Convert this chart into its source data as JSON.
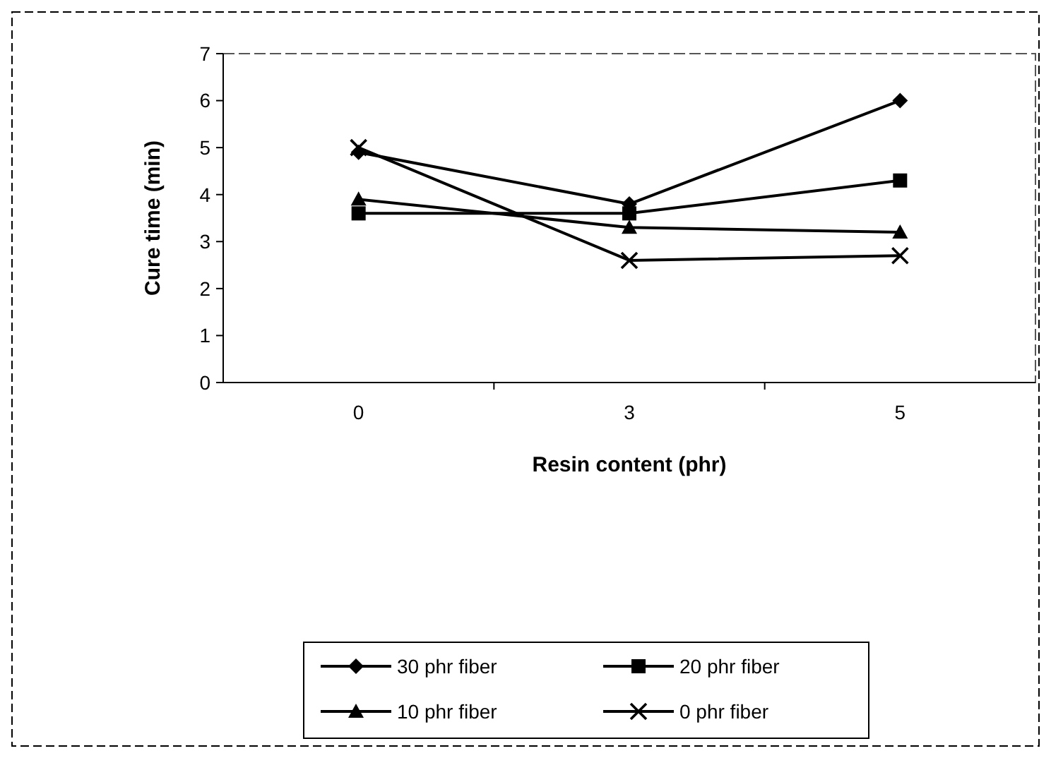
{
  "chart_data": {
    "type": "line",
    "xlabel": "Resin content (phr)",
    "ylabel": "Cure time (min)",
    "categories": [
      "0",
      "3",
      "5"
    ],
    "ylim": [
      0,
      7
    ],
    "yticks": [
      0,
      1,
      2,
      3,
      4,
      5,
      6,
      7
    ],
    "grid": false,
    "legend": "bottom",
    "line_style": "solid",
    "series": [
      {
        "name": "30 phr fiber",
        "color": "#000000",
        "marker": "diamond",
        "values": [
          4.9,
          3.8,
          6.0
        ]
      },
      {
        "name": "20 phr fiber",
        "color": "#000000",
        "marker": "square",
        "values": [
          3.6,
          3.6,
          4.3
        ]
      },
      {
        "name": "10 phr fiber",
        "color": "#000000",
        "marker": "triangle",
        "values": [
          3.9,
          3.3,
          3.2
        ]
      },
      {
        "name": "0 phr fiber",
        "color": "#000000",
        "marker": "cross",
        "values": [
          5.0,
          2.6,
          2.7
        ]
      }
    ]
  }
}
